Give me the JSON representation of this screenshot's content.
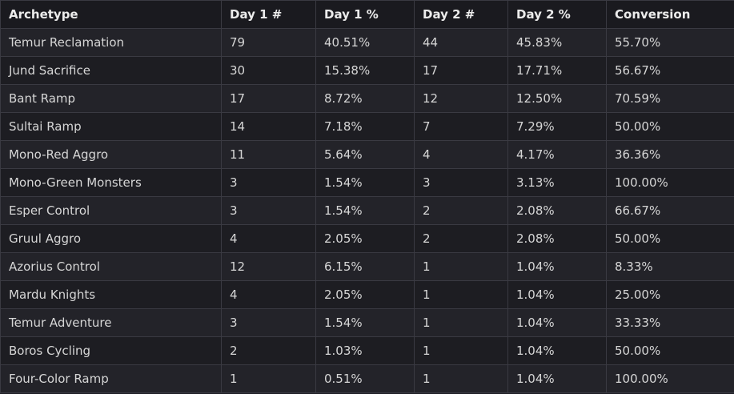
{
  "table": {
    "headers": [
      "Archetype",
      "Day 1 #",
      "Day 1 %",
      "Day 2 #",
      "Day 2 %",
      "Conversion"
    ],
    "rows": [
      [
        "Temur Reclamation",
        "79",
        "40.51%",
        "44",
        "45.83%",
        "55.70%"
      ],
      [
        "Jund Sacrifice",
        "30",
        "15.38%",
        "17",
        "17.71%",
        "56.67%"
      ],
      [
        "Bant Ramp",
        "17",
        "8.72%",
        "12",
        "12.50%",
        "70.59%"
      ],
      [
        "Sultai Ramp",
        "14",
        "7.18%",
        "7",
        "7.29%",
        "50.00%"
      ],
      [
        "Mono-Red Aggro",
        "11",
        "5.64%",
        "4",
        "4.17%",
        "36.36%"
      ],
      [
        "Mono-Green Monsters",
        "3",
        "1.54%",
        "3",
        "3.13%",
        "100.00%"
      ],
      [
        "Esper Control",
        "3",
        "1.54%",
        "2",
        "2.08%",
        "66.67%"
      ],
      [
        "Gruul Aggro",
        "4",
        "2.05%",
        "2",
        "2.08%",
        "50.00%"
      ],
      [
        "Azorius Control",
        "12",
        "6.15%",
        "1",
        "1.04%",
        "8.33%"
      ],
      [
        "Mardu Knights",
        "4",
        "2.05%",
        "1",
        "1.04%",
        "25.00%"
      ],
      [
        "Temur Adventure",
        "3",
        "1.54%",
        "1",
        "1.04%",
        "33.33%"
      ],
      [
        "Boros Cycling",
        "2",
        "1.03%",
        "1",
        "1.04%",
        "50.00%"
      ],
      [
        "Four-Color Ramp",
        "1",
        "0.51%",
        "1",
        "1.04%",
        "100.00%"
      ]
    ]
  }
}
